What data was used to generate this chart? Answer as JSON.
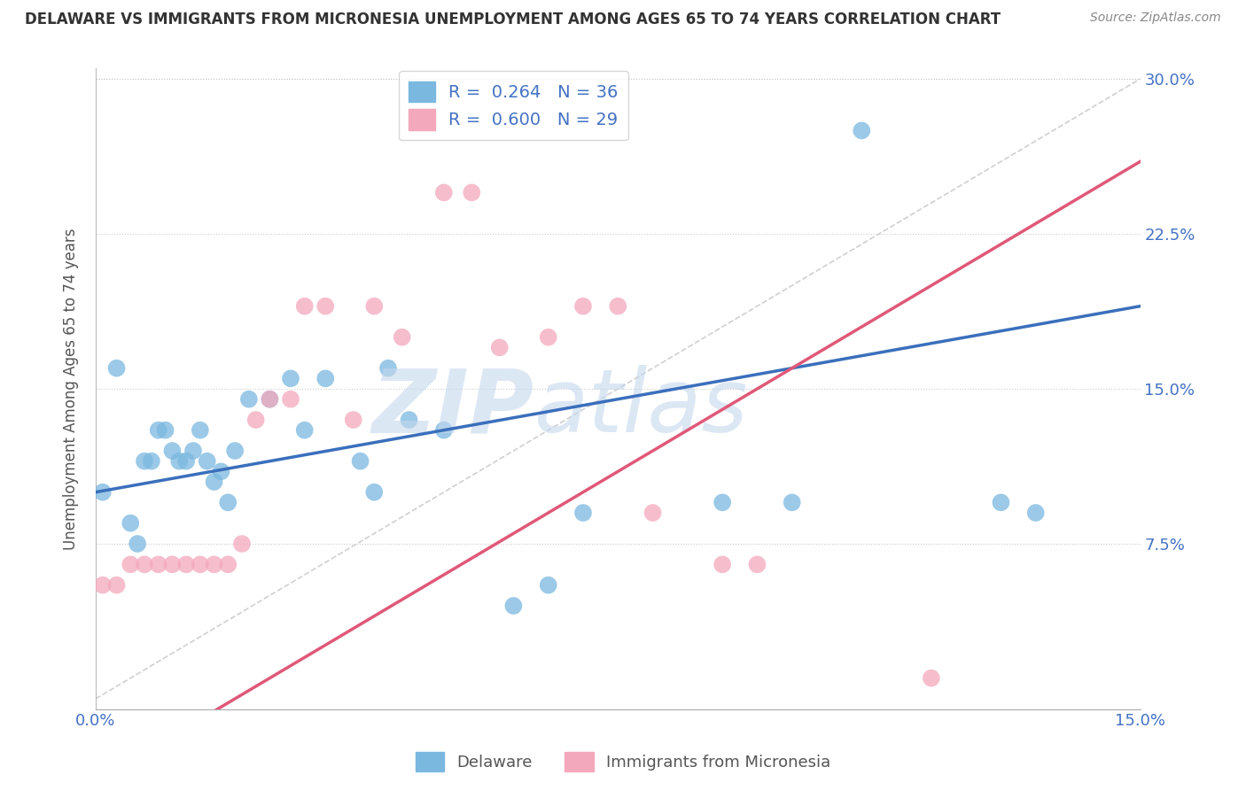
{
  "title": "DELAWARE VS IMMIGRANTS FROM MICRONESIA UNEMPLOYMENT AMONG AGES 65 TO 74 YEARS CORRELATION CHART",
  "source": "Source: ZipAtlas.com",
  "ylabel": "Unemployment Among Ages 65 to 74 years",
  "xlim": [
    0.0,
    0.15
  ],
  "ylim": [
    -0.005,
    0.305
  ],
  "xticks": [
    0.0,
    0.025,
    0.05,
    0.075,
    0.1,
    0.125,
    0.15
  ],
  "yticks": [
    0.0,
    0.075,
    0.15,
    0.225,
    0.3
  ],
  "ytick_labels": [
    "",
    "7.5%",
    "15.0%",
    "22.5%",
    "30.0%"
  ],
  "blue_color": "#7ab8e0",
  "pink_color": "#f4a8bc",
  "blue_line_color": "#3a6fbc",
  "pink_line_color": "#e05878",
  "legend_label_blue": "Delaware",
  "legend_label_pink": "Immigrants from Micronesia",
  "legend_R_blue": "R =  0.264",
  "legend_N_blue": "N = 36",
  "legend_R_pink": "R =  0.600",
  "legend_N_pink": "N = 29",
  "blue_x": [
    0.001,
    0.003,
    0.005,
    0.006,
    0.007,
    0.008,
    0.009,
    0.01,
    0.011,
    0.012,
    0.013,
    0.014,
    0.015,
    0.016,
    0.017,
    0.018,
    0.019,
    0.02,
    0.022,
    0.025,
    0.028,
    0.03,
    0.033,
    0.038,
    0.04,
    0.042,
    0.045,
    0.05,
    0.06,
    0.065,
    0.07,
    0.09,
    0.1,
    0.11,
    0.13,
    0.135
  ],
  "blue_y": [
    0.1,
    0.16,
    0.085,
    0.075,
    0.115,
    0.115,
    0.13,
    0.13,
    0.12,
    0.115,
    0.115,
    0.12,
    0.13,
    0.115,
    0.105,
    0.11,
    0.095,
    0.12,
    0.145,
    0.145,
    0.155,
    0.13,
    0.155,
    0.115,
    0.1,
    0.16,
    0.135,
    0.13,
    0.045,
    0.055,
    0.09,
    0.095,
    0.095,
    0.275,
    0.095,
    0.09
  ],
  "pink_x": [
    0.001,
    0.003,
    0.005,
    0.007,
    0.009,
    0.011,
    0.013,
    0.015,
    0.017,
    0.019,
    0.021,
    0.023,
    0.025,
    0.028,
    0.03,
    0.033,
    0.037,
    0.04,
    0.044,
    0.05,
    0.054,
    0.058,
    0.065,
    0.07,
    0.075,
    0.08,
    0.09,
    0.095,
    0.12
  ],
  "pink_y": [
    0.055,
    0.055,
    0.065,
    0.065,
    0.065,
    0.065,
    0.065,
    0.065,
    0.065,
    0.065,
    0.075,
    0.135,
    0.145,
    0.145,
    0.19,
    0.19,
    0.135,
    0.19,
    0.175,
    0.245,
    0.245,
    0.17,
    0.175,
    0.19,
    0.19,
    0.09,
    0.065,
    0.065,
    0.01
  ],
  "background_color": "#ffffff",
  "grid_color": "#cccccc",
  "watermark_color": "#c5d8ee"
}
